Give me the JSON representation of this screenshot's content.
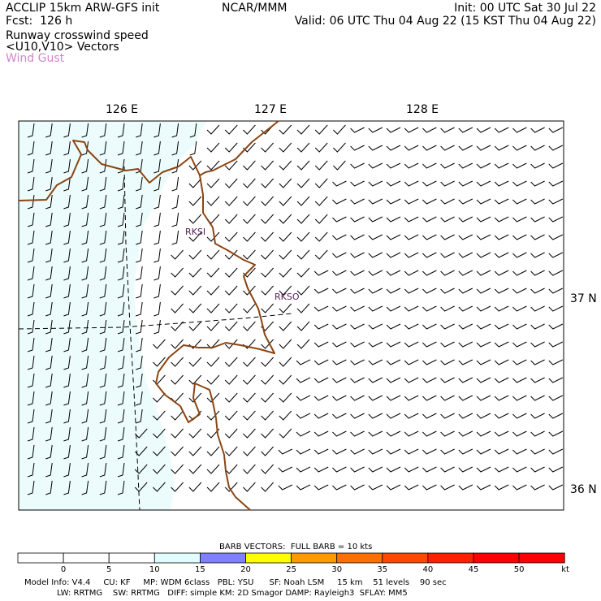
{
  "header": {
    "title": "ACCLIP 15km ARW-GFS init",
    "forecast": "Fcst:  126 h",
    "center": "NCAR/MMM",
    "init": "Init: 00 UTC Sat 30 Jul 22",
    "valid": "Valid: 06 UTC Thu 04 Aug 22 (15 KST Thu 04 Aug 22)",
    "field1": "Runway crosswind speed",
    "field2": "<U10,V10> Vectors",
    "field3": "Wind Gust",
    "field3_color": "#cc88cc"
  },
  "map": {
    "lon_labels": [
      "126 E",
      "127 E",
      "128 E"
    ],
    "lat_labels": [
      "37 N",
      "36 N"
    ],
    "stations": [
      "RKSI",
      "RKSO"
    ],
    "coast_color": "#8b4513",
    "station_color": "#552255",
    "shade_color": "#ecfcfc"
  },
  "colorbar": {
    "title": "BARB VECTORS:  FULL BARB = 10 kts",
    "ticks": [
      "0",
      "5",
      "10",
      "15",
      "20",
      "25",
      "30",
      "35",
      "40",
      "45",
      "50"
    ],
    "unit": "kt",
    "colors": [
      "#ffffff",
      "#ffffff",
      "#ffffff",
      "#e0fcfc",
      "#8080ff",
      "#ffff00",
      "#ff9a00",
      "#ff7000",
      "#ff4800",
      "#ff2000",
      "#ff0000",
      "#ff0000"
    ]
  },
  "footer": {
    "line1": "Model Info: V4.4     CU: KF     MP: WDM 6class   PBL: YSU      SF: Noah LSM     15 km    51 levels    90 sec",
    "line2": "LW: RRTMG    SW: RRTMG   DIFF: simple KM: 2D Smagor DAMP: Rayleigh3  SFLAY: MM5"
  }
}
